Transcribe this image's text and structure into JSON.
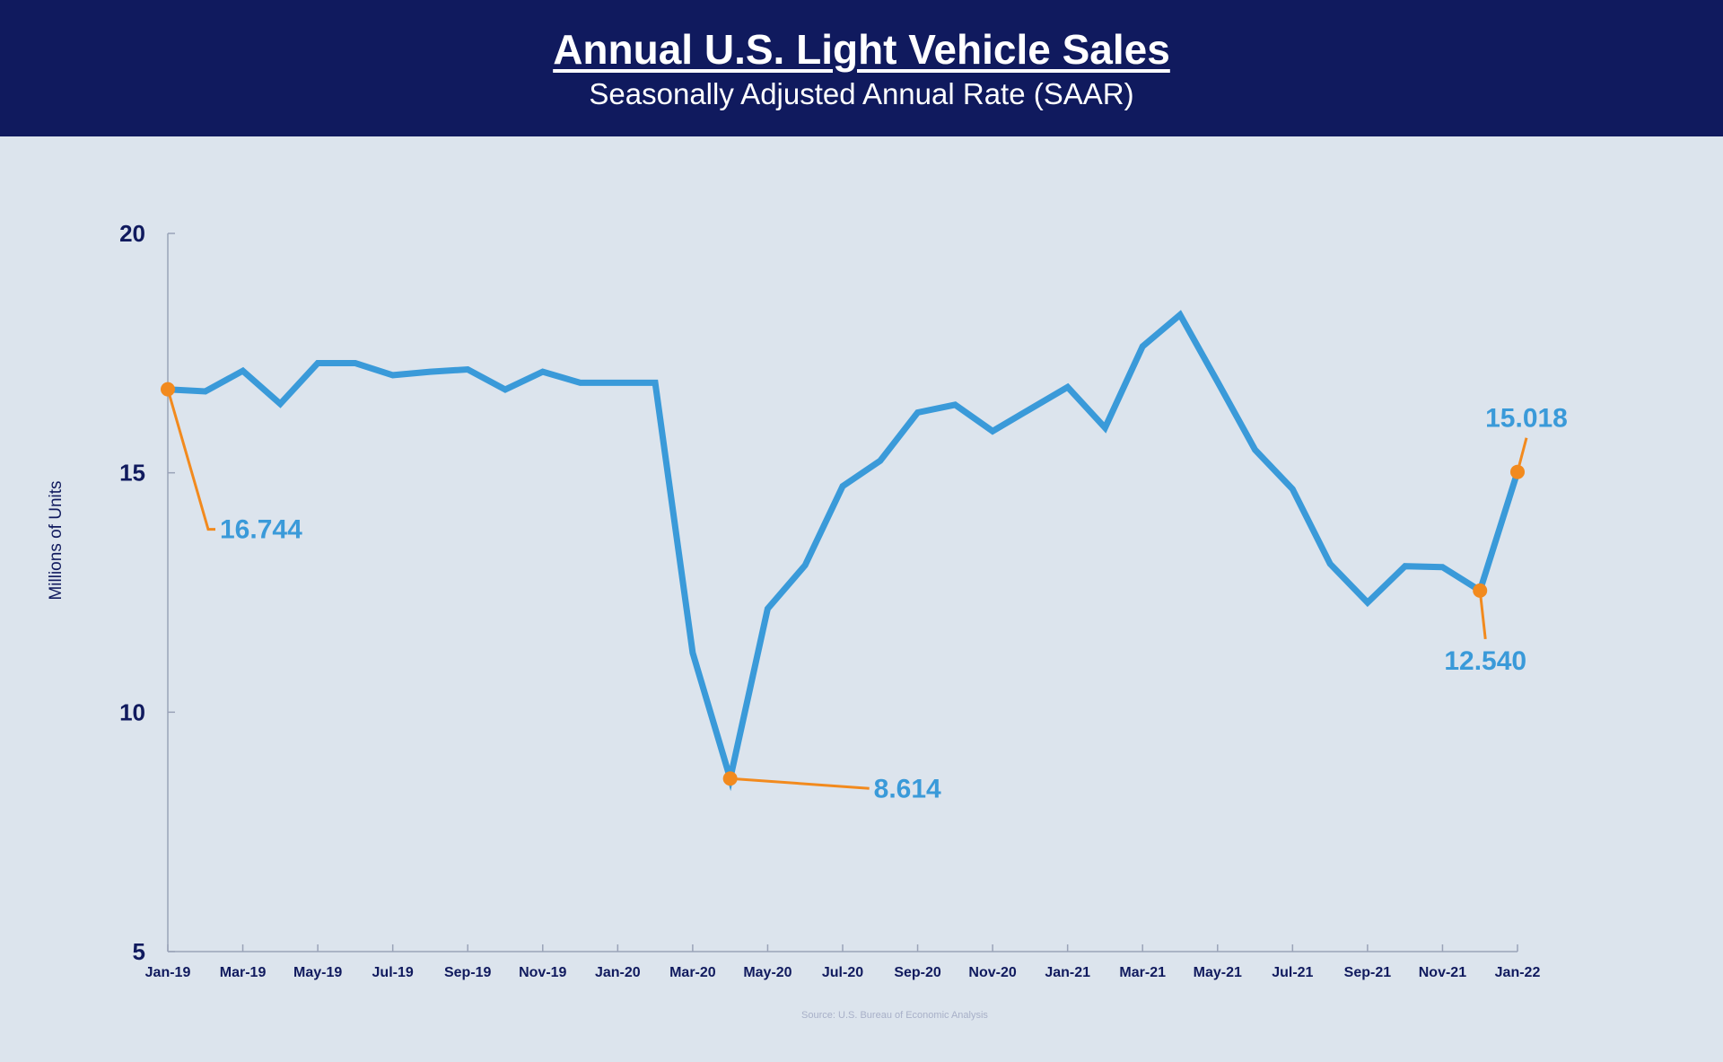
{
  "header": {
    "title": "Annual U.S. Light Vehicle Sales",
    "subtitle": "Seasonally Adjusted Annual Rate (SAAR)"
  },
  "source": "Source: U.S. Bureau of Economic Analysis",
  "colors": {
    "header_bg": "#101a5e",
    "line": "#3a9ad9",
    "marker": "#f28a1e",
    "axis_text": "#101a5e",
    "background": "#dce4ed"
  },
  "chart_data": {
    "type": "line",
    "ylabel": "Millions of Units",
    "xlabel": "",
    "ylim": [
      5,
      20
    ],
    "yticks": [
      5,
      10,
      15,
      20
    ],
    "grid": false,
    "x": [
      "Jan-19",
      "Feb-19",
      "Mar-19",
      "Apr-19",
      "May-19",
      "Jun-19",
      "Jul-19",
      "Aug-19",
      "Sep-19",
      "Oct-19",
      "Nov-19",
      "Dec-19",
      "Jan-20",
      "Feb-20",
      "Mar-20",
      "Apr-20",
      "May-20",
      "Jun-20",
      "Jul-20",
      "Aug-20",
      "Sep-20",
      "Oct-20",
      "Nov-20",
      "Dec-20",
      "Jan-21",
      "Feb-21",
      "Mar-21",
      "Apr-21",
      "May-21",
      "Jun-21",
      "Jul-21",
      "Aug-21",
      "Sep-21",
      "Oct-21",
      "Nov-21",
      "Dec-21",
      "Jan-22"
    ],
    "xticks": [
      "Jan-19",
      "Mar-19",
      "May-19",
      "Jul-19",
      "Sep-19",
      "Nov-19",
      "Jan-20",
      "Mar-20",
      "May-20",
      "Jul-20",
      "Sep-20",
      "Nov-20",
      "Jan-21",
      "Mar-21",
      "May-21",
      "Jul-21",
      "Sep-21",
      "Nov-21",
      "Jan-22"
    ],
    "values": [
      16.744,
      16.7,
      17.13,
      16.44,
      17.29,
      17.29,
      17.04,
      17.11,
      17.16,
      16.74,
      17.11,
      16.88,
      16.88,
      16.88,
      11.24,
      8.614,
      12.16,
      13.07,
      14.72,
      15.25,
      16.26,
      16.42,
      15.87,
      16.33,
      16.79,
      15.94,
      17.64,
      18.3,
      16.9,
      15.48,
      14.66,
      13.1,
      12.29,
      13.05,
      13.03,
      12.54,
      15.018
    ],
    "annotations": [
      {
        "x": "Jan-19",
        "label": "16.744"
      },
      {
        "x": "Apr-20",
        "label": "8.614"
      },
      {
        "x": "Dec-21",
        "label": "12.540"
      },
      {
        "x": "Jan-22",
        "label": "15.018"
      }
    ]
  }
}
